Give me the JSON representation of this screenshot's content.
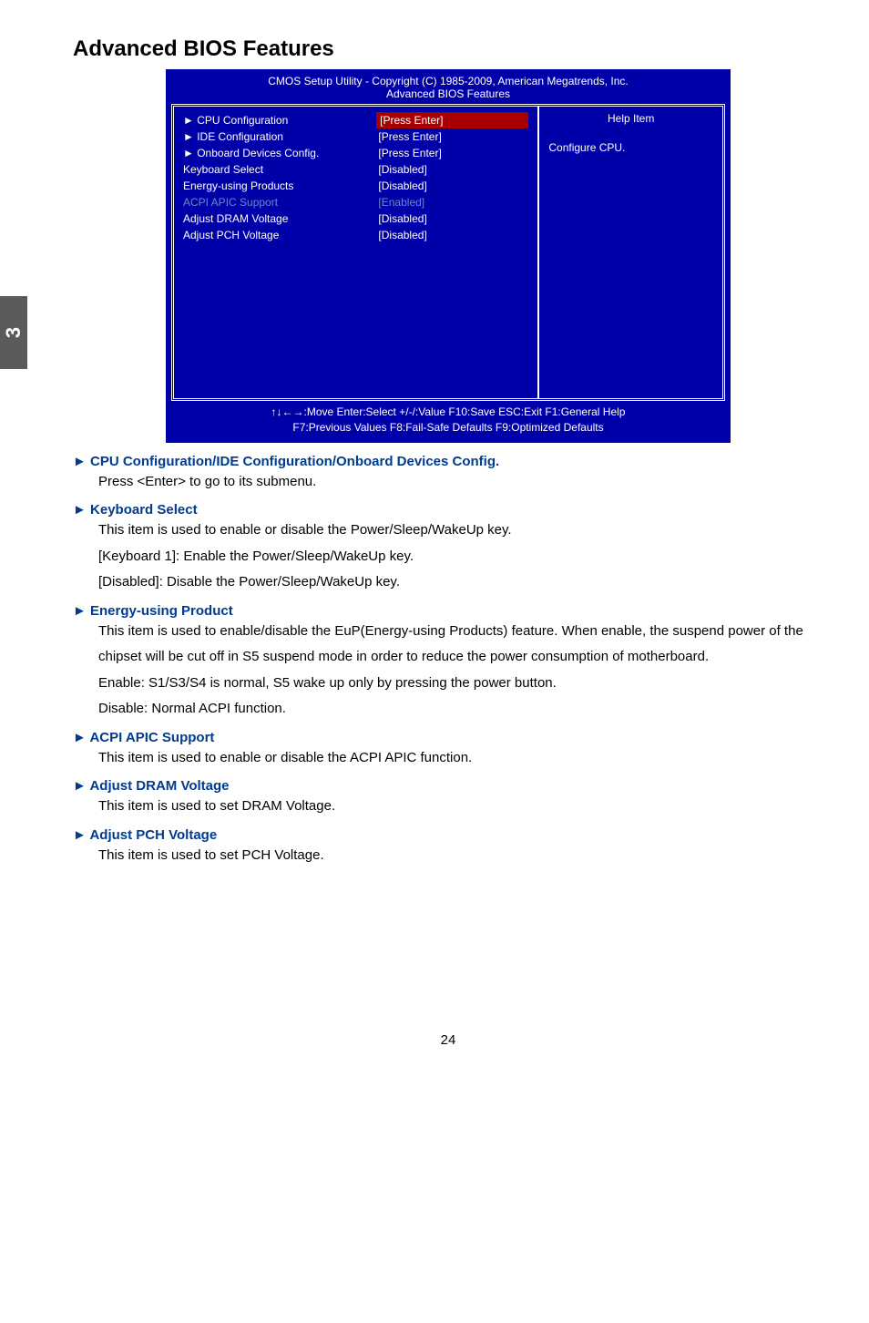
{
  "sideTab": "3",
  "pageTitle": "Advanced BIOS Features",
  "bios": {
    "headerLine1": "CMOS Setup Utility - Copyright (C) 1985-2009, American Megatrends, Inc.",
    "headerLine2": "Advanced BIOS Features",
    "rows": [
      {
        "label": "► CPU Configuration",
        "value": "[Press Enter]",
        "highlight": true,
        "dim": false
      },
      {
        "label": "► IDE Configuration",
        "value": "[Press Enter]",
        "highlight": false,
        "dim": false
      },
      {
        "label": "► Onboard Devices Config.",
        "value": "[Press Enter]",
        "highlight": false,
        "dim": false
      },
      {
        "label": "Keyboard Select",
        "value": "[Disabled]",
        "highlight": false,
        "dim": false
      },
      {
        "label": "Energy-using Products",
        "value": "[Disabled]",
        "highlight": false,
        "dim": false
      },
      {
        "label": "ACPI APIC Support",
        "value": "[Enabled]",
        "highlight": false,
        "dim": true
      },
      {
        "label": "Adjust DRAM Voltage",
        "value": "[Disabled]",
        "highlight": false,
        "dim": false
      },
      {
        "label": "Adjust PCH Voltage",
        "value": "[Disabled]",
        "highlight": false,
        "dim": false
      }
    ],
    "helpTitle": "Help Item",
    "helpText": "Configure CPU.",
    "footerLine1": "↑↓←→:Move  Enter:Select    +/-/:Value     F10:Save   ESC:Exit      F1:General Help",
    "footerLine2": "F7:Previous Values          F8:Fail-Safe Defaults          F9:Optimized Defaults",
    "colors": {
      "bg": "#0000a8",
      "highlightBg": "#a80000",
      "dimText": "#6888c8",
      "normalText": "#ffffff"
    }
  },
  "sections": [
    {
      "head": "► CPU Configuration/IDE Configuration/Onboard Devices Config.",
      "lines": [
        "Press <Enter> to go to its submenu."
      ]
    },
    {
      "head": "► Keyboard Select",
      "lines": [
        "This item is used to enable or disable the Power/Sleep/WakeUp key.",
        "[Keyboard 1]: Enable the Power/Sleep/WakeUp key.",
        "[Disabled]: Disable the Power/Sleep/WakeUp key."
      ]
    },
    {
      "head": "► Energy-using Product",
      "lines": [
        "This item is used to enable/disable the EuP(Energy-using Products) feature. When enable, the suspend power of the chipset will be cut off in S5 suspend mode in order to reduce the power consumption of motherboard.",
        "Enable: S1/S3/S4 is normal, S5 wake up only by pressing the power button.",
        "Disable: Normal ACPI function."
      ]
    },
    {
      "head": "► ACPI APIC Support",
      "lines": [
        "This item is used to enable or disable the ACPI APIC function."
      ]
    },
    {
      "head": "► Adjust DRAM Voltage",
      "lines": [
        "This item is used to set DRAM Voltage."
      ]
    },
    {
      "head": "►  Adjust PCH Voltage",
      "lines": [
        "This item is used to set PCH Voltage."
      ]
    }
  ],
  "pageNumber": "24"
}
